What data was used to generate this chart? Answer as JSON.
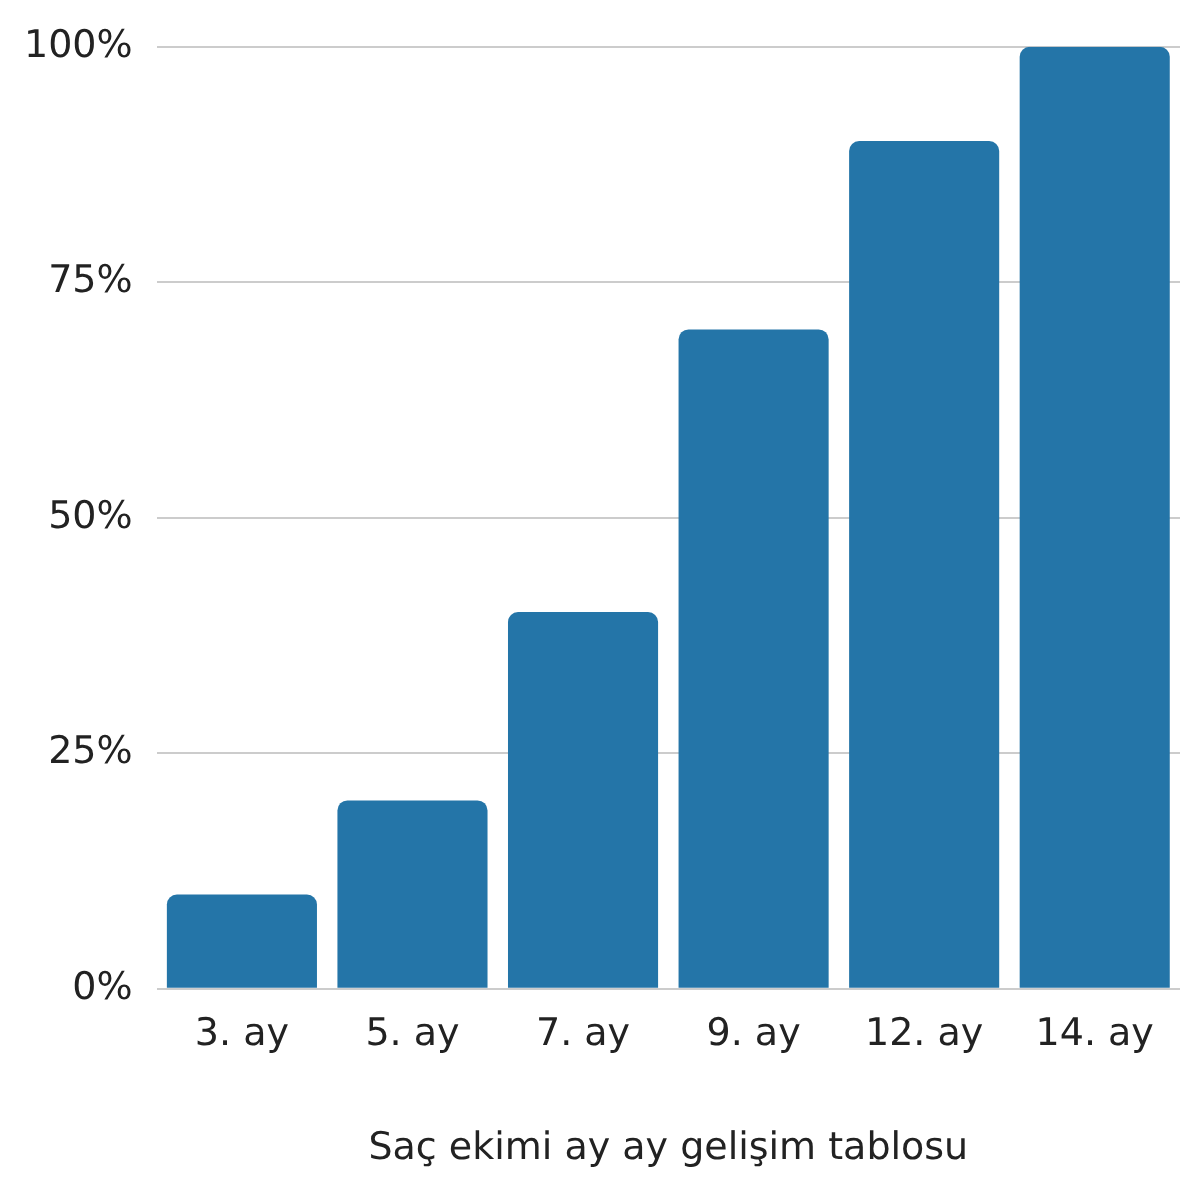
{
  "chart_data": {
    "type": "bar",
    "xlabel": "Saç ekimi ay ay gelişim tablosu",
    "categories": [
      "3. ay",
      "5. ay",
      "7. ay",
      "9. ay",
      "12. ay",
      "14. ay"
    ],
    "values": [
      10,
      20,
      40,
      70,
      90,
      100
    ],
    "color": "#2475a8",
    "ylim": [
      0,
      100
    ],
    "yticks": [
      {
        "value": 0,
        "label": "0%"
      },
      {
        "value": 25,
        "label": "25%"
      },
      {
        "value": 50,
        "label": "50%"
      },
      {
        "value": 75,
        "label": "75%"
      },
      {
        "value": 100,
        "label": "100%"
      }
    ],
    "grid": "y"
  }
}
